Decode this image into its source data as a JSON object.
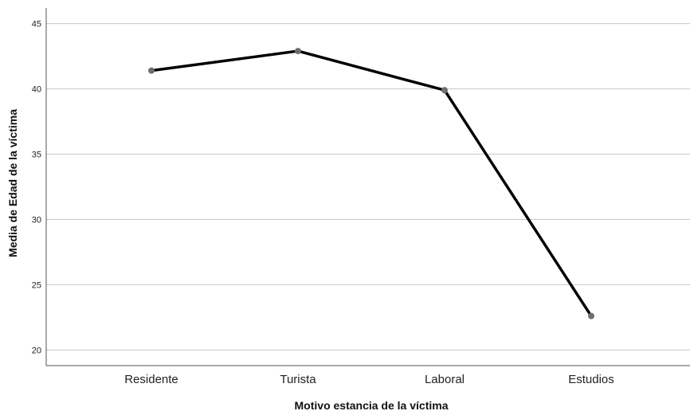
{
  "chart_data": {
    "type": "line",
    "title": "",
    "xlabel": "Motivo estancia de la víctima",
    "ylabel": "Media de Edad de la víctima",
    "categories": [
      "Residente",
      "Turista",
      "Laboral",
      "Estudios"
    ],
    "series": [
      {
        "values": [
          41.4,
          42.9,
          39.9,
          22.6
        ]
      }
    ],
    "ylim": [
      18.8,
      46.2
    ],
    "yticks": [
      20,
      25,
      30,
      35,
      40,
      45
    ],
    "grid": true,
    "colors": {
      "line": "#000000",
      "marker": "#6e6e6e",
      "grid": "#c8c8c8",
      "axis": "#555555"
    }
  }
}
